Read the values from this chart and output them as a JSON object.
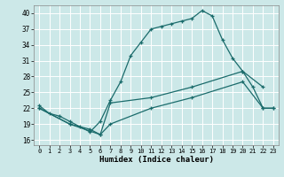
{
  "xlabel": "Humidex (Indice chaleur)",
  "bg_color": "#cce8e8",
  "grid_color": "#b8d8d8",
  "line_color": "#1a6b6b",
  "xlim": [
    -0.5,
    23.5
  ],
  "ylim": [
    15,
    41.5
  ],
  "yticks": [
    16,
    19,
    22,
    25,
    28,
    31,
    34,
    37,
    40
  ],
  "xticks": [
    0,
    1,
    2,
    3,
    4,
    5,
    6,
    7,
    8,
    9,
    10,
    11,
    12,
    13,
    14,
    15,
    16,
    17,
    18,
    19,
    20,
    21,
    22,
    23
  ],
  "line1_x": [
    0,
    1,
    2,
    3,
    4,
    5,
    6,
    7,
    8,
    9,
    10,
    11,
    12,
    13,
    14,
    15,
    16,
    17,
    18,
    19,
    20,
    21,
    22,
    23
  ],
  "line1_y": [
    22.5,
    21,
    20.5,
    19.5,
    18.5,
    17.5,
    19.5,
    23.5,
    27,
    32,
    34.5,
    37,
    37.5,
    38,
    38.5,
    39,
    40.5,
    39.5,
    35,
    31.5,
    29,
    26,
    22,
    22
  ],
  "line2_x": [
    0,
    3,
    6,
    7,
    11,
    15,
    20,
    22
  ],
  "line2_y": [
    22,
    19,
    17,
    23,
    24,
    26,
    29,
    26
  ],
  "line3_x": [
    0,
    3,
    5,
    6,
    7,
    11,
    15,
    20,
    22,
    23
  ],
  "line3_y": [
    22,
    19,
    18,
    17,
    19,
    22,
    24,
    27,
    22,
    22
  ]
}
